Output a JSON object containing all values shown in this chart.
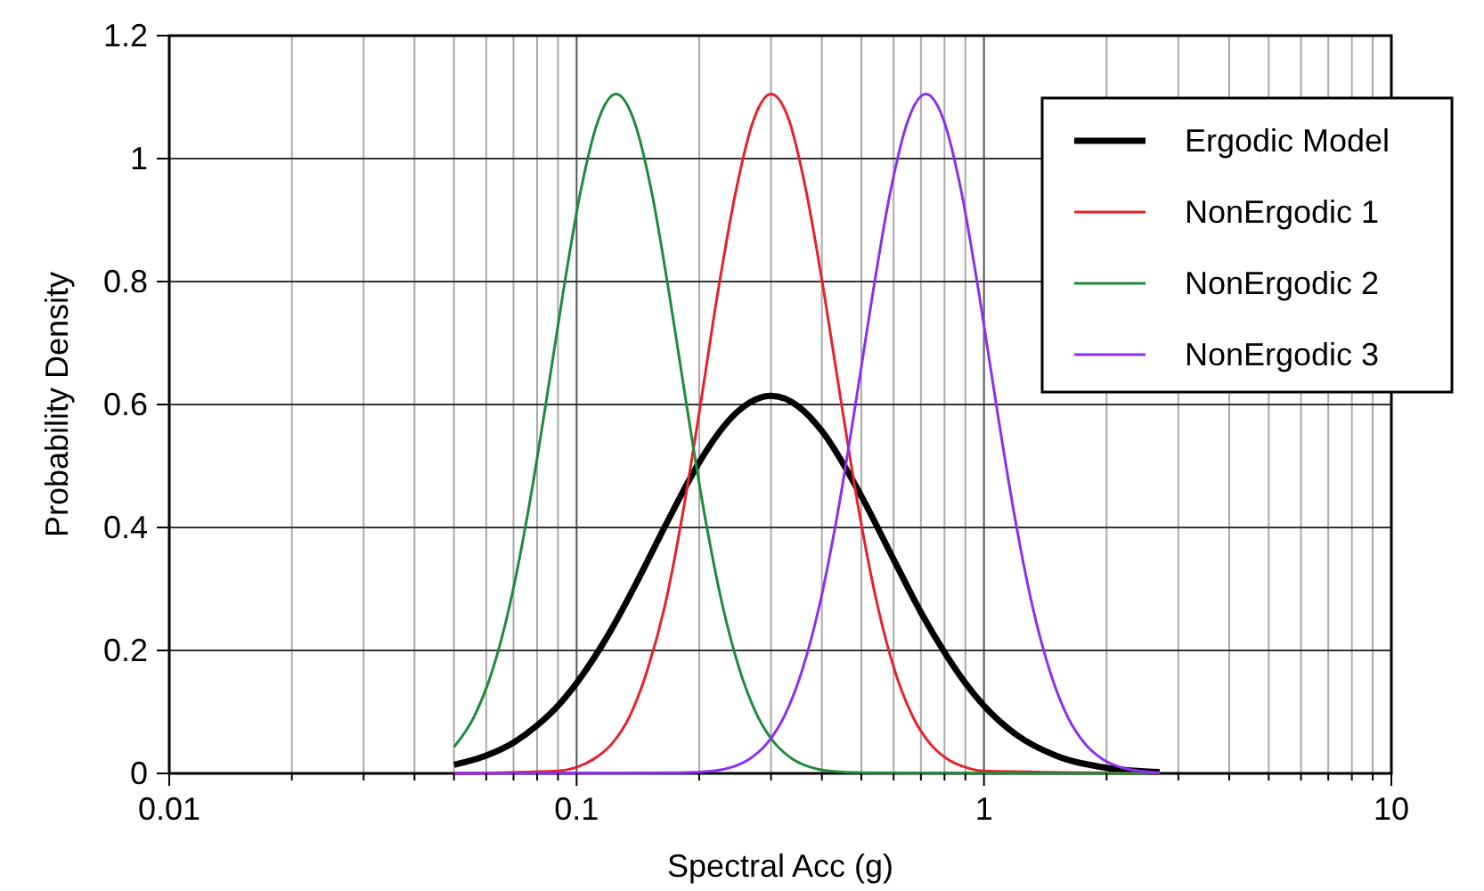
{
  "chart_data": {
    "type": "line",
    "xlabel": "Spectral Acc (g)",
    "ylabel": "Probability Density",
    "log": "x",
    "grid": true,
    "legend": "top right",
    "marker": "none",
    "line_style": "solid",
    "xlim": [
      0.01,
      10
    ],
    "ylim": [
      0,
      1.2
    ],
    "xticks": [
      0.01,
      {
        "value": 0.02,
        "label": null
      },
      {
        "value": 0.03,
        "label": null
      },
      {
        "value": 0.04,
        "label": null
      },
      {
        "value": 0.05,
        "label": null
      },
      {
        "value": 0.06,
        "label": null
      },
      {
        "value": 0.07,
        "label": null
      },
      {
        "value": 0.08,
        "label": null
      },
      {
        "value": 0.09,
        "label": null
      },
      0.1,
      {
        "value": 0.2,
        "label": null
      },
      {
        "value": 0.3,
        "label": null
      },
      {
        "value": 0.4,
        "label": null
      },
      {
        "value": 0.5,
        "label": null
      },
      {
        "value": 0.6,
        "label": null
      },
      {
        "value": 0.7,
        "label": null
      },
      {
        "value": 0.8,
        "label": null
      },
      {
        "value": 0.9,
        "label": null
      },
      1,
      {
        "value": 2,
        "label": null
      },
      {
        "value": 3,
        "label": null
      },
      {
        "value": 4,
        "label": null
      },
      {
        "value": 5,
        "label": null
      },
      {
        "value": 6,
        "label": null
      },
      {
        "value": 7,
        "label": null
      },
      {
        "value": 8,
        "label": null
      },
      {
        "value": 9,
        "label": null
      },
      10
    ],
    "yticks": [
      0,
      0.2,
      0.4,
      0.6,
      0.8,
      1,
      1.2
    ],
    "series": [
      {
        "name": "Ergodic Model",
        "color": "#000000",
        "x": [
          0.05,
          0.06,
          0.07,
          0.08,
          0.09,
          0.1,
          0.12,
          0.14,
          0.16,
          0.18,
          0.2,
          0.25,
          0.3,
          0.35,
          0.4,
          0.5,
          0.6,
          0.7,
          0.8,
          0.9,
          1,
          1.2,
          1.5,
          2,
          2.7
        ],
        "values": [
          0.014,
          0.029,
          0.05,
          0.078,
          0.11,
          0.147,
          0.227,
          0.309,
          0.385,
          0.451,
          0.506,
          0.59,
          0.614,
          0.597,
          0.557,
          0.451,
          0.348,
          0.262,
          0.197,
          0.147,
          0.11,
          0.063,
          0.029,
          0.009,
          0.002
        ]
      },
      {
        "name": "NonErgodic 1",
        "color": "#e8202a",
        "x": [
          0.05,
          0.09,
          0.1,
          0.11,
          0.122,
          0.135,
          0.149,
          0.165,
          0.182,
          0.201,
          0.222,
          0.246,
          0.272,
          0.3,
          0.332,
          0.366,
          0.405,
          0.448,
          0.495,
          0.547,
          0.604,
          0.668,
          0.738,
          0.815,
          0.901,
          0.996,
          2.7
        ],
        "values": [
          0,
          0.004,
          0.01,
          0.023,
          0.048,
          0.093,
          0.167,
          0.275,
          0.421,
          0.596,
          0.781,
          0.947,
          1.063,
          1.105,
          1.063,
          0.947,
          0.781,
          0.596,
          0.421,
          0.275,
          0.167,
          0.093,
          0.048,
          0.023,
          0.01,
          0.004,
          0
        ]
      },
      {
        "name": "NonErgodic 2",
        "color": "#1e8a3a",
        "x": [
          0.05,
          0.0561,
          0.0621,
          0.0686,
          0.0758,
          0.0838,
          0.0926,
          0.1023,
          0.1131,
          0.125,
          0.1381,
          0.1527,
          0.1687,
          0.1865,
          0.2061,
          0.2278,
          0.2517,
          0.2782,
          0.3075,
          0.3398,
          0.3755,
          0.415,
          0.507,
          2.7
        ],
        "values": [
          0.043,
          0.093,
          0.167,
          0.275,
          0.421,
          0.596,
          0.781,
          0.947,
          1.063,
          1.105,
          1.063,
          0.947,
          0.781,
          0.596,
          0.421,
          0.275,
          0.167,
          0.093,
          0.048,
          0.023,
          0.01,
          0.004,
          0.001,
          0
        ]
      },
      {
        "name": "NonErgodic 3",
        "color": "#8b2ff0",
        "x": [
          0.05,
          0.1776,
          0.2168,
          0.2398,
          0.2649,
          0.2927,
          0.3235,
          0.3575,
          0.3951,
          0.4367,
          0.4826,
          0.5334,
          0.5895,
          0.6515,
          0.72,
          0.7957,
          0.8794,
          0.9719,
          1.074,
          1.187,
          1.312,
          1.45,
          1.602,
          1.771,
          1.957,
          2.163,
          2.391,
          2.7
        ],
        "values": [
          0,
          0.001,
          0.004,
          0.01,
          0.023,
          0.048,
          0.093,
          0.167,
          0.275,
          0.421,
          0.596,
          0.781,
          0.947,
          1.063,
          1.105,
          1.063,
          0.947,
          0.781,
          0.596,
          0.421,
          0.275,
          0.167,
          0.093,
          0.048,
          0.023,
          0.01,
          0.004,
          0.001
        ]
      }
    ]
  }
}
